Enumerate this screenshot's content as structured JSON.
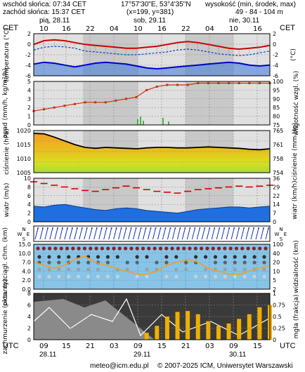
{
  "header": {
    "sunrise": "wschód słońca: 07:34 CET",
    "sunset": "zachód słońca: 15:37 CET",
    "coords": "17°57'30\"E, 53°4'35\"N",
    "grid": "(x=199, y=381)",
    "altitude_label": "wysokość (min, środek, max)",
    "altitude_values": "49 - 84 - 104 m",
    "tz_left": "CET",
    "tz_right": "CET",
    "tz_bottom_left": "UTC",
    "tz_bottom_right": "UTC",
    "days_top": [
      "pią, 28.11",
      "sob, 29.11",
      "nie, 30.11"
    ],
    "hours_top": [
      "10",
      "16",
      "22",
      "04",
      "10",
      "16",
      "22",
      "04",
      "10",
      "16"
    ],
    "hours_bottom": [
      "09",
      "15",
      "21",
      "03",
      "09",
      "15",
      "21",
      "03",
      "09",
      "15"
    ],
    "days_bottom": [
      "28.11",
      "29.11",
      "30.11"
    ]
  },
  "footer": {
    "email": "meteo@icm.edu.pl",
    "copyright": "© 2007-2025 ICM, Uniwersytet Warszawski"
  },
  "colors": {
    "plot_bg": "#c8c8c8",
    "day_band": "#e0e0e0",
    "temp_line": "#cc0000",
    "dew_line": "#0000cc",
    "pressure_top": "#f4a020",
    "pressure_mid": "#d8e020",
    "wind_fill": "#1f6fe0",
    "gust": "#d40000",
    "cloud_bg": "#87c4e8",
    "visibility": "#f0a020",
    "precip_bar": "#f0b000"
  },
  "chart_data": [
    {
      "type": "line",
      "panel": "temperature",
      "ylabel_left": "temperatura (°C)",
      "ylabel_right": "(°C)",
      "yticks": [
        "2",
        "0",
        "-2",
        "-4",
        "-6"
      ],
      "ylim": [
        -6.5,
        2.5
      ],
      "series": [
        {
          "values": [
            0.2,
            1.0,
            1.2,
            1.0,
            0.6,
            0.2,
            0.0,
            -0.2,
            -0.4,
            -0.6,
            -0.6,
            -0.4,
            -0.2,
            0.2,
            0.6,
            0.8,
            0.6,
            0.2,
            -0.2,
            -0.6,
            -0.8,
            -0.6,
            -0.4,
            0.0
          ]
        },
        {
          "values": [
            -1.0,
            -0.4,
            -0.2,
            -0.3,
            -0.6,
            -1.2,
            -1.4,
            -1.6,
            -1.8,
            -2.0,
            -2.0,
            -1.8,
            -1.6,
            -1.4,
            -1.0,
            -0.8,
            -1.0,
            -1.4,
            -1.8,
            -2.0,
            -2.2,
            -2.0,
            -1.6,
            -1.2
          ]
        },
        {
          "values": [
            -4.0,
            -3.6,
            -3.8,
            -4.2,
            -4.6,
            -4.2,
            -3.8,
            -3.6,
            -3.8,
            -4.0,
            -4.4,
            -4.8,
            -5.0,
            -4.8,
            -4.6,
            -4.4,
            -4.2,
            -4.0,
            -3.8,
            -3.6,
            -3.8,
            -4.2,
            -4.4,
            -4.2
          ]
        }
      ]
    },
    {
      "type": "line",
      "panel": "precipitation_humidity",
      "ylabel_left": "opad (mm/h, kg/m²/h)",
      "ylabel_right": "wilgotność wzgl. (%)",
      "yticks_left": [
        "5",
        "4",
        "3",
        "2",
        "1",
        "0"
      ],
      "yticks_right": [
        "100",
        "95",
        "90",
        "85",
        "80",
        "75"
      ],
      "ylim_right": [
        75,
        100
      ],
      "series": [
        {
          "values": [
            83,
            84,
            85,
            86,
            87,
            88,
            88,
            88,
            89,
            90,
            91,
            95,
            97,
            98,
            98,
            98,
            99,
            99,
            99,
            99,
            99,
            99,
            99,
            99
          ]
        }
      ]
    },
    {
      "type": "area",
      "panel": "pressure",
      "ylabel_left": "ciśnienie (hPa)",
      "ylabel_right": "ciśnienie (mm Hg)",
      "yticks_left": [
        "1020",
        "1015",
        "1010",
        "1005"
      ],
      "yticks_right": [
        "765",
        "761",
        "758",
        "754"
      ],
      "ylim": [
        1003,
        1021
      ],
      "series": [
        {
          "values": [
            1019.8,
            1019.6,
            1018.2,
            1016.6,
            1015.0,
            1013.8,
            1013.4,
            1013.8,
            1013.6,
            1013.4,
            1013.2,
            1013.6,
            1013.8,
            1013.8,
            1013.6,
            1013.6,
            1013.8,
            1014.0,
            1013.8,
            1013.6,
            1013.4,
            1013.0,
            1012.8,
            1013.2
          ]
        }
      ]
    },
    {
      "type": "area",
      "panel": "wind",
      "ylabel_left": "wiatr (m/s)",
      "ylabel_right": "wiatr (km/h)",
      "yticks_left": [
        "10",
        "8",
        "6",
        "4",
        "2",
        "0"
      ],
      "yticks_right": [
        "36",
        "29",
        "22",
        "14",
        "7",
        "0"
      ],
      "ylim": [
        0,
        10
      ],
      "series": [
        {
          "values": [
            3.6,
            3.4,
            3.8,
            4.0,
            3.6,
            3.2,
            2.8,
            2.6,
            3.0,
            3.2,
            3.0,
            2.6,
            2.4,
            2.2,
            2.0,
            2.4,
            2.8,
            3.0,
            3.2,
            3.4,
            3.4,
            3.2,
            3.4,
            3.6
          ]
        },
        {
          "values": [
            9.2,
            8.8,
            8.4,
            8.0,
            7.6,
            7.2,
            7.0,
            7.4,
            7.8,
            8.2,
            7.8,
            7.4,
            7.0,
            6.8,
            6.6,
            7.0,
            7.4,
            7.6,
            7.8,
            8.0,
            8.2,
            8.0,
            8.2,
            8.4
          ]
        }
      ]
    },
    {
      "type": "scatter",
      "panel": "wind_direction",
      "compass": [
        "N",
        "W",
        "E",
        "S"
      ]
    },
    {
      "type": "scatter",
      "panel": "cloud_visibility",
      "ylabel_left": "pion. rozciągł. chm. (km)",
      "ylabel_right": "widzialność (km)",
      "yticks_left": [
        "15.0",
        "10.0",
        "7.0",
        "4.0",
        "2.0",
        "0.0"
      ],
      "yticks_right": [
        "100",
        "40",
        "20",
        "10",
        "5",
        "2"
      ],
      "series": [
        {
          "values": [
            14,
            14,
            14,
            14,
            14,
            14,
            14,
            14,
            14,
            14,
            14,
            14,
            14,
            14,
            14,
            14,
            14,
            14,
            14,
            14,
            14,
            14,
            14,
            14
          ]
        },
        {
          "values": [
            9,
            8,
            7,
            8,
            10,
            11,
            9,
            8,
            7,
            6,
            5,
            5,
            6,
            8,
            9,
            10,
            9,
            7,
            6,
            5,
            5,
            6,
            7,
            8
          ]
        }
      ]
    },
    {
      "type": "bar",
      "panel": "clouds_precip",
      "ylabel_left": "zachmurzenie (oktanty)",
      "ylabel_right": "mgła (frakcja)",
      "yticks_left": [
        "8",
        "6",
        "4",
        "2",
        "0"
      ],
      "yticks_right": [
        "1",
        "0.75",
        "0.5",
        "0.25",
        "0"
      ],
      "series": [
        {
          "values": [
            0,
            0,
            0,
            0,
            0,
            0,
            0,
            0,
            0,
            0,
            0,
            0.15,
            0.3,
            0.5,
            0.6,
            0.62,
            0.55,
            0.4,
            0.3,
            0.35,
            0.45,
            0.55,
            0.7,
            0.75
          ]
        }
      ]
    }
  ]
}
